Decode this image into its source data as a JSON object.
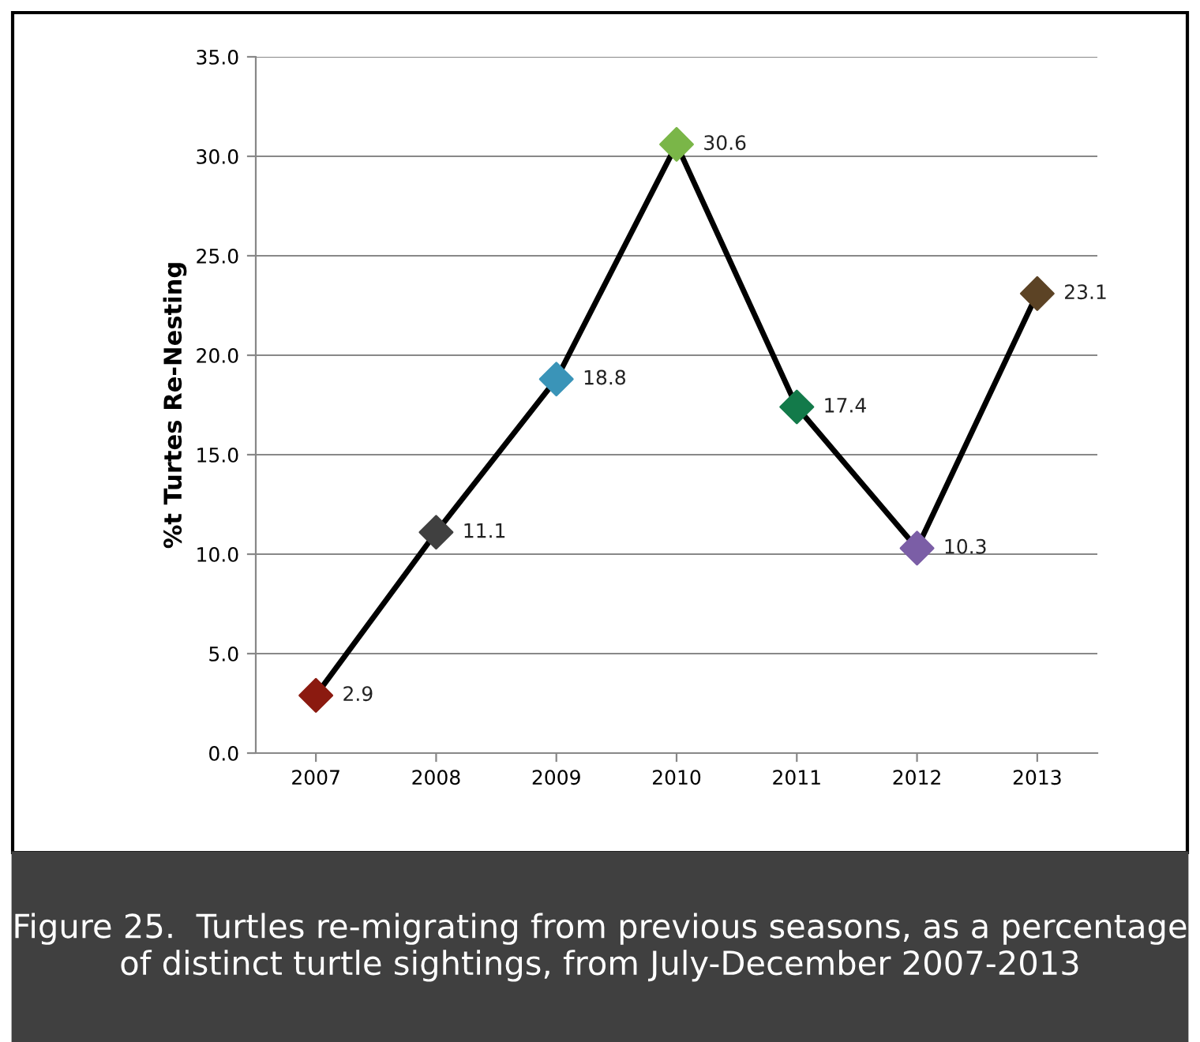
{
  "chart_data": {
    "type": "line",
    "ylabel": "%t Turtes Re-Nesting",
    "categories": [
      "2007",
      "2008",
      "2009",
      "2010",
      "2011",
      "2012",
      "2013"
    ],
    "series": [
      {
        "color": "#000000",
        "colors": [
          "#8b1a10",
          "#404040",
          "#3a94b8",
          "#7ab648",
          "#137a4a",
          "#7b5ea6",
          "#5c4325"
        ],
        "values": [
          2.9,
          11.1,
          18.8,
          30.6,
          17.4,
          10.3,
          23.1
        ]
      }
    ],
    "ylim": [
      0,
      35
    ],
    "yticks": [
      {
        "value": 0,
        "label": "0.0"
      },
      {
        "value": 5,
        "label": "5.0"
      },
      {
        "value": 10,
        "label": "10.0"
      },
      {
        "value": 15,
        "label": "15.0"
      },
      {
        "value": 20,
        "label": "20.0"
      },
      {
        "value": 25,
        "label": "25.0"
      },
      {
        "value": 30,
        "label": "30.0"
      },
      {
        "value": 35,
        "label": "35.0"
      }
    ],
    "grid": "y",
    "marker": "diamond",
    "line_style": "solid",
    "data_labels": true,
    "annotations": [
      "Figure 25.  Turtles re-migrating from previous seasons, as a percentage of distinct turtle sightings, from July-December 2007-2013"
    ]
  }
}
